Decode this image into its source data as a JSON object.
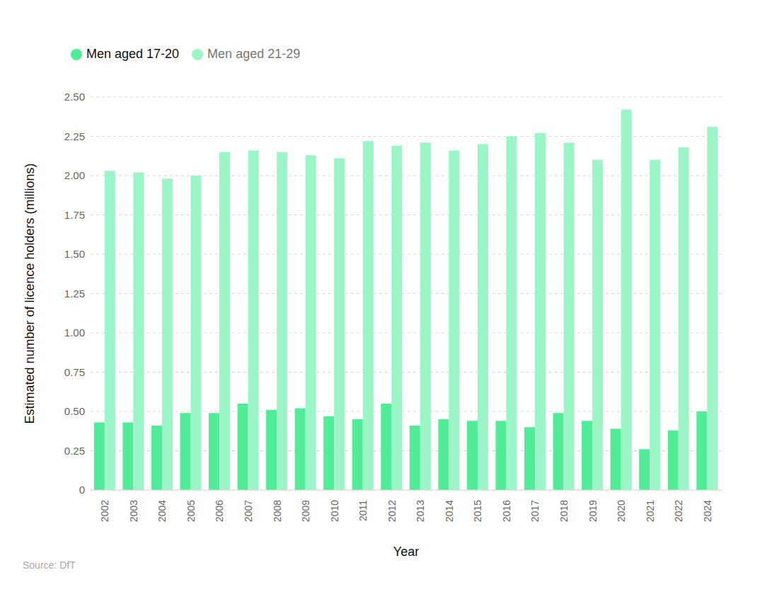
{
  "chart_data": {
    "type": "bar",
    "x_label": "Year",
    "y_label": "Estimated number of licence holders (millions)",
    "source": "Source: DfT",
    "categories": [
      "2002",
      "2003",
      "2004",
      "2005",
      "2006",
      "2007",
      "2008",
      "2009",
      "2010",
      "2011",
      "2012",
      "2013",
      "2014",
      "2015",
      "2016",
      "2017",
      "2018",
      "2019",
      "2020",
      "2021",
      "2022",
      "2024"
    ],
    "series": [
      {
        "name": "Men aged 17-20",
        "color": "#52eb98",
        "values": [
          0.43,
          0.43,
          0.41,
          0.49,
          0.49,
          0.55,
          0.51,
          0.52,
          0.47,
          0.45,
          0.55,
          0.41,
          0.45,
          0.44,
          0.44,
          0.4,
          0.49,
          0.44,
          0.39,
          0.26,
          0.38,
          0.5
        ]
      },
      {
        "name": "Men aged 21-29",
        "color": "#9bf5c7",
        "values": [
          2.03,
          2.02,
          1.98,
          2.0,
          2.15,
          2.16,
          2.15,
          2.13,
          2.11,
          2.22,
          2.19,
          2.21,
          2.16,
          2.2,
          2.25,
          2.27,
          2.21,
          2.1,
          2.42,
          2.1,
          2.18,
          2.31
        ]
      }
    ],
    "ylim": [
      0,
      2.5
    ],
    "yticks": [
      0,
      0.25,
      {
        "value": 0.5,
        "label": "0.50"
      },
      0.75,
      {
        "value": 1,
        "label": "1.00"
      },
      1.25,
      {
        "value": 1.5,
        "label": "1.50"
      },
      1.75,
      {
        "value": 2,
        "label": "2.00"
      },
      2.25,
      {
        "value": 2.5,
        "label": "2.50"
      }
    ],
    "grid": true,
    "legend": "top-left"
  }
}
